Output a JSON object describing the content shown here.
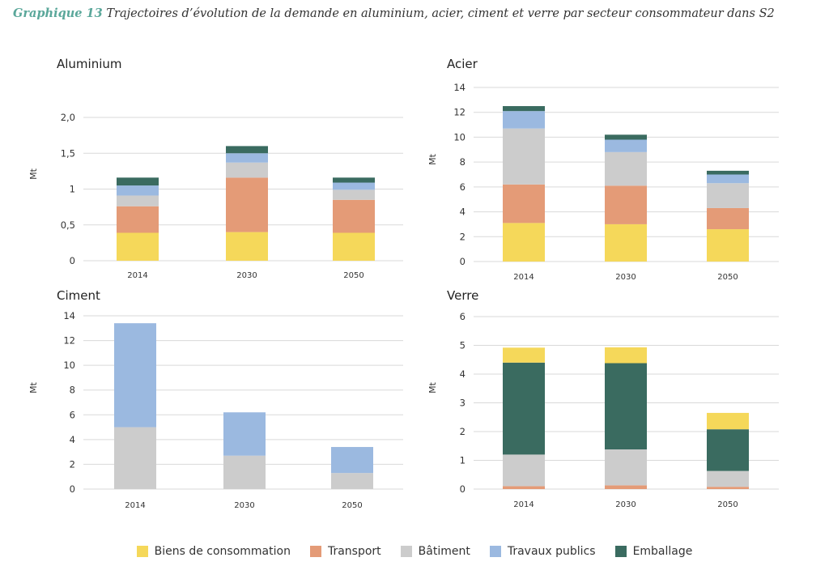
{
  "caption": {
    "label": "Graphique 13",
    "text": "Trajectoires d’évolution de la demande en aluminium, acier, ciment et verre par secteur consommateur dans S2"
  },
  "series_colors": {
    "Biens de consommation": "#f5d85a",
    "Transport": "#e49b77",
    "Bâtiment": "#cccccc",
    "Travaux publics": "#9bb9e0",
    "Emballage": "#3a6b60"
  },
  "legend": [
    {
      "name": "Biens de consommation",
      "color": "#f5d85a"
    },
    {
      "name": "Transport",
      "color": "#e49b77"
    },
    {
      "name": "Bâtiment",
      "color": "#cccccc"
    },
    {
      "name": "Travaux publics",
      "color": "#9bb9e0"
    },
    {
      "name": "Emballage",
      "color": "#3a6b60"
    }
  ],
  "chart_data": [
    {
      "type": "bar",
      "stacked": true,
      "title": "Aluminium",
      "ylabel": "Mt",
      "ylim": [
        0,
        2
      ],
      "yticks": [
        "0",
        "0,5",
        "1",
        "1,5",
        "2,0"
      ],
      "ytick_values": [
        0,
        0.5,
        1,
        1.5,
        2
      ],
      "categories": [
        "2014",
        "2030",
        "2050"
      ],
      "series": [
        {
          "name": "Biens de consommation",
          "values": [
            0.39,
            0.4,
            0.39
          ]
        },
        {
          "name": "Transport",
          "values": [
            0.37,
            0.76,
            0.46
          ]
        },
        {
          "name": "Bâtiment",
          "values": [
            0.15,
            0.21,
            0.14
          ]
        },
        {
          "name": "Travaux publics",
          "values": [
            0.14,
            0.13,
            0.1
          ]
        },
        {
          "name": "Emballage",
          "values": [
            0.11,
            0.1,
            0.07
          ]
        }
      ]
    },
    {
      "type": "bar",
      "stacked": true,
      "title": "Acier",
      "ylabel": "Mt",
      "ylim": [
        0,
        14
      ],
      "yticks": [
        "0",
        "2",
        "4",
        "6",
        "8",
        "10",
        "12",
        "14"
      ],
      "ytick_values": [
        0,
        2,
        4,
        6,
        8,
        10,
        12,
        14
      ],
      "categories": [
        "2014",
        "2030",
        "2050"
      ],
      "series": [
        {
          "name": "Biens de consommation",
          "values": [
            3.1,
            3.0,
            2.6
          ]
        },
        {
          "name": "Transport",
          "values": [
            3.1,
            3.1,
            1.7
          ]
        },
        {
          "name": "Bâtiment",
          "values": [
            4.5,
            2.7,
            2.0
          ]
        },
        {
          "name": "Travaux publics",
          "values": [
            1.4,
            1.0,
            0.7
          ]
        },
        {
          "name": "Emballage",
          "values": [
            0.4,
            0.4,
            0.3
          ]
        }
      ]
    },
    {
      "type": "bar",
      "stacked": true,
      "title": "Ciment",
      "ylabel": "Mt",
      "ylim": [
        0,
        14
      ],
      "yticks": [
        "0",
        "2",
        "4",
        "6",
        "8",
        "10",
        "12",
        "14"
      ],
      "ytick_values": [
        0,
        2,
        4,
        6,
        8,
        10,
        12,
        14
      ],
      "categories": [
        "2014",
        "2030",
        "2050"
      ],
      "series": [
        {
          "name": "Bâtiment",
          "values": [
            5.0,
            2.7,
            1.3
          ]
        },
        {
          "name": "Travaux publics",
          "values": [
            8.4,
            3.5,
            2.1
          ]
        }
      ]
    },
    {
      "type": "bar",
      "stacked": true,
      "title": "Verre",
      "ylabel": "Mt",
      "ylim": [
        0,
        6
      ],
      "yticks": [
        "0",
        "1",
        "2",
        "3",
        "4",
        "5",
        "6"
      ],
      "ytick_values": [
        0,
        1,
        2,
        3,
        4,
        5,
        6
      ],
      "categories": [
        "2014",
        "2030",
        "2050"
      ],
      "series": [
        {
          "name": "Transport",
          "values": [
            0.1,
            0.13,
            0.08
          ]
        },
        {
          "name": "Bâtiment",
          "values": [
            1.1,
            1.25,
            0.55
          ]
        },
        {
          "name": "Emballage",
          "values": [
            3.2,
            3.0,
            1.45
          ]
        },
        {
          "name": "Biens de consommation",
          "values": [
            0.52,
            0.55,
            0.57
          ]
        }
      ]
    }
  ]
}
